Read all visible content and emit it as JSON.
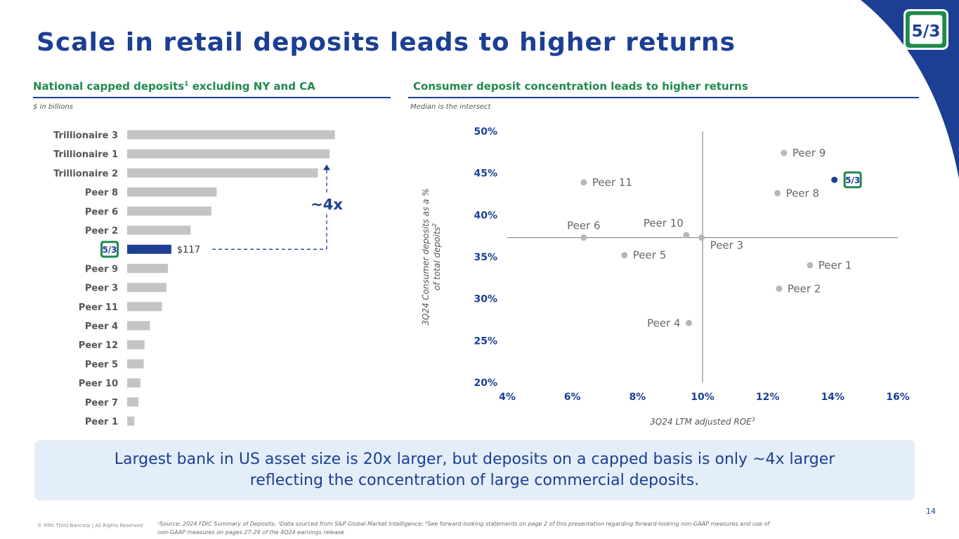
{
  "title": "Scale in retail deposits leads to higher returns",
  "colors": {
    "navy": "#1c3f94",
    "green": "#1f8a4c",
    "bar_gray": "#c4c4c4",
    "dot_gray": "#b7b7b7",
    "banner_bg": "#e4eef8"
  },
  "brand_logo": {
    "icon": "fifth-third-logo-icon",
    "text": "5/3"
  },
  "left_panel": {
    "heading_main": "National capped deposits",
    "heading_sup": "1",
    "heading_rest": " excluding NY and CA",
    "note": "$ in billions",
    "multiplier_label": "~4x"
  },
  "right_panel": {
    "heading": "Consumer deposit concentration leads to higher returns",
    "note": "Median is the intersect"
  },
  "chart_data": [
    {
      "type": "bar",
      "orientation": "horizontal",
      "categories": [
        "Trillionaire 3",
        "Trillionaire 1",
        "Trillionaire 2",
        "Peer 8",
        "Peer 6",
        "Peer 2",
        "5/3",
        "Peer 9",
        "Peer 3",
        "Peer 11",
        "Peer 4",
        "Peer 12",
        "Peer 5",
        "Peer 10",
        "Peer 7",
        "Peer 1"
      ],
      "values": [
        550,
        536,
        505,
        237,
        223,
        168,
        117,
        108,
        104,
        92,
        60,
        46,
        44,
        35,
        30,
        19
      ],
      "highlight": "5/3",
      "data_labels": {
        "5/3": "$117"
      },
      "xlim": [
        0,
        560
      ],
      "ylabel": "",
      "xlabel": ""
    },
    {
      "type": "scatter",
      "xlabel": "3Q24 LTM adjusted ROE",
      "xlabel_sup": "3",
      "ylabel": "3Q24 Consumer deposits as a %",
      "ylabel_line2": "of total depoits",
      "ylabel_sup": "2",
      "xlim": [
        4,
        16
      ],
      "ylim": [
        20,
        50
      ],
      "x_ticks": [
        "4%",
        "6%",
        "8%",
        "10%",
        "12%",
        "14%",
        "16%"
      ],
      "y_ticks": [
        "20%",
        "25%",
        "30%",
        "35%",
        "40%",
        "45%",
        "50%"
      ],
      "median": {
        "x": 10,
        "y": 37.3
      },
      "points": [
        {
          "name": "Peer 9",
          "x": 12.5,
          "y": 47.4,
          "label_side": "right"
        },
        {
          "name": "Peer 11",
          "x": 6.35,
          "y": 43.9,
          "label_side": "right"
        },
        {
          "name": "Peer 8",
          "x": 12.3,
          "y": 42.6,
          "label_side": "right"
        },
        {
          "name": "Peer 6",
          "x": 6.35,
          "y": 37.3,
          "label_side": "above"
        },
        {
          "name": "Peer 10",
          "x": 9.5,
          "y": 37.6,
          "label_side": "above-left"
        },
        {
          "name": "Peer 3",
          "x": 9.97,
          "y": 37.3,
          "label_side": "below-right"
        },
        {
          "name": "Peer 5",
          "x": 7.6,
          "y": 35.2,
          "label_side": "right"
        },
        {
          "name": "Peer 1",
          "x": 13.3,
          "y": 34.0,
          "label_side": "right"
        },
        {
          "name": "Peer 2",
          "x": 12.35,
          "y": 31.2,
          "label_side": "right"
        },
        {
          "name": "Peer 4",
          "x": 9.58,
          "y": 27.1,
          "label_side": "left"
        },
        {
          "name": "5/3",
          "x": 14.05,
          "y": 44.2,
          "highlight": true,
          "label_side": "logo"
        }
      ]
    }
  ],
  "banner": {
    "line1": "Largest bank in US asset size is 20x larger, but deposits on a capped basis is only ~4x larger",
    "line2": "reflecting the concentration of large commercial deposits."
  },
  "page_number": "14",
  "copyright": "© Fifth Third Bancorp | All Rights Reserved",
  "footnote": "¹Source: 2024 FDIC Summary of Deposits; ²Data sourced from S&P Global Market Intelligence; ³See forward-looking statements on page 2 of this presentation regarding forward-looking non-GAAP measures and use of non-GAAP measures on pages 27-29 of the 4Q24 earnings release"
}
